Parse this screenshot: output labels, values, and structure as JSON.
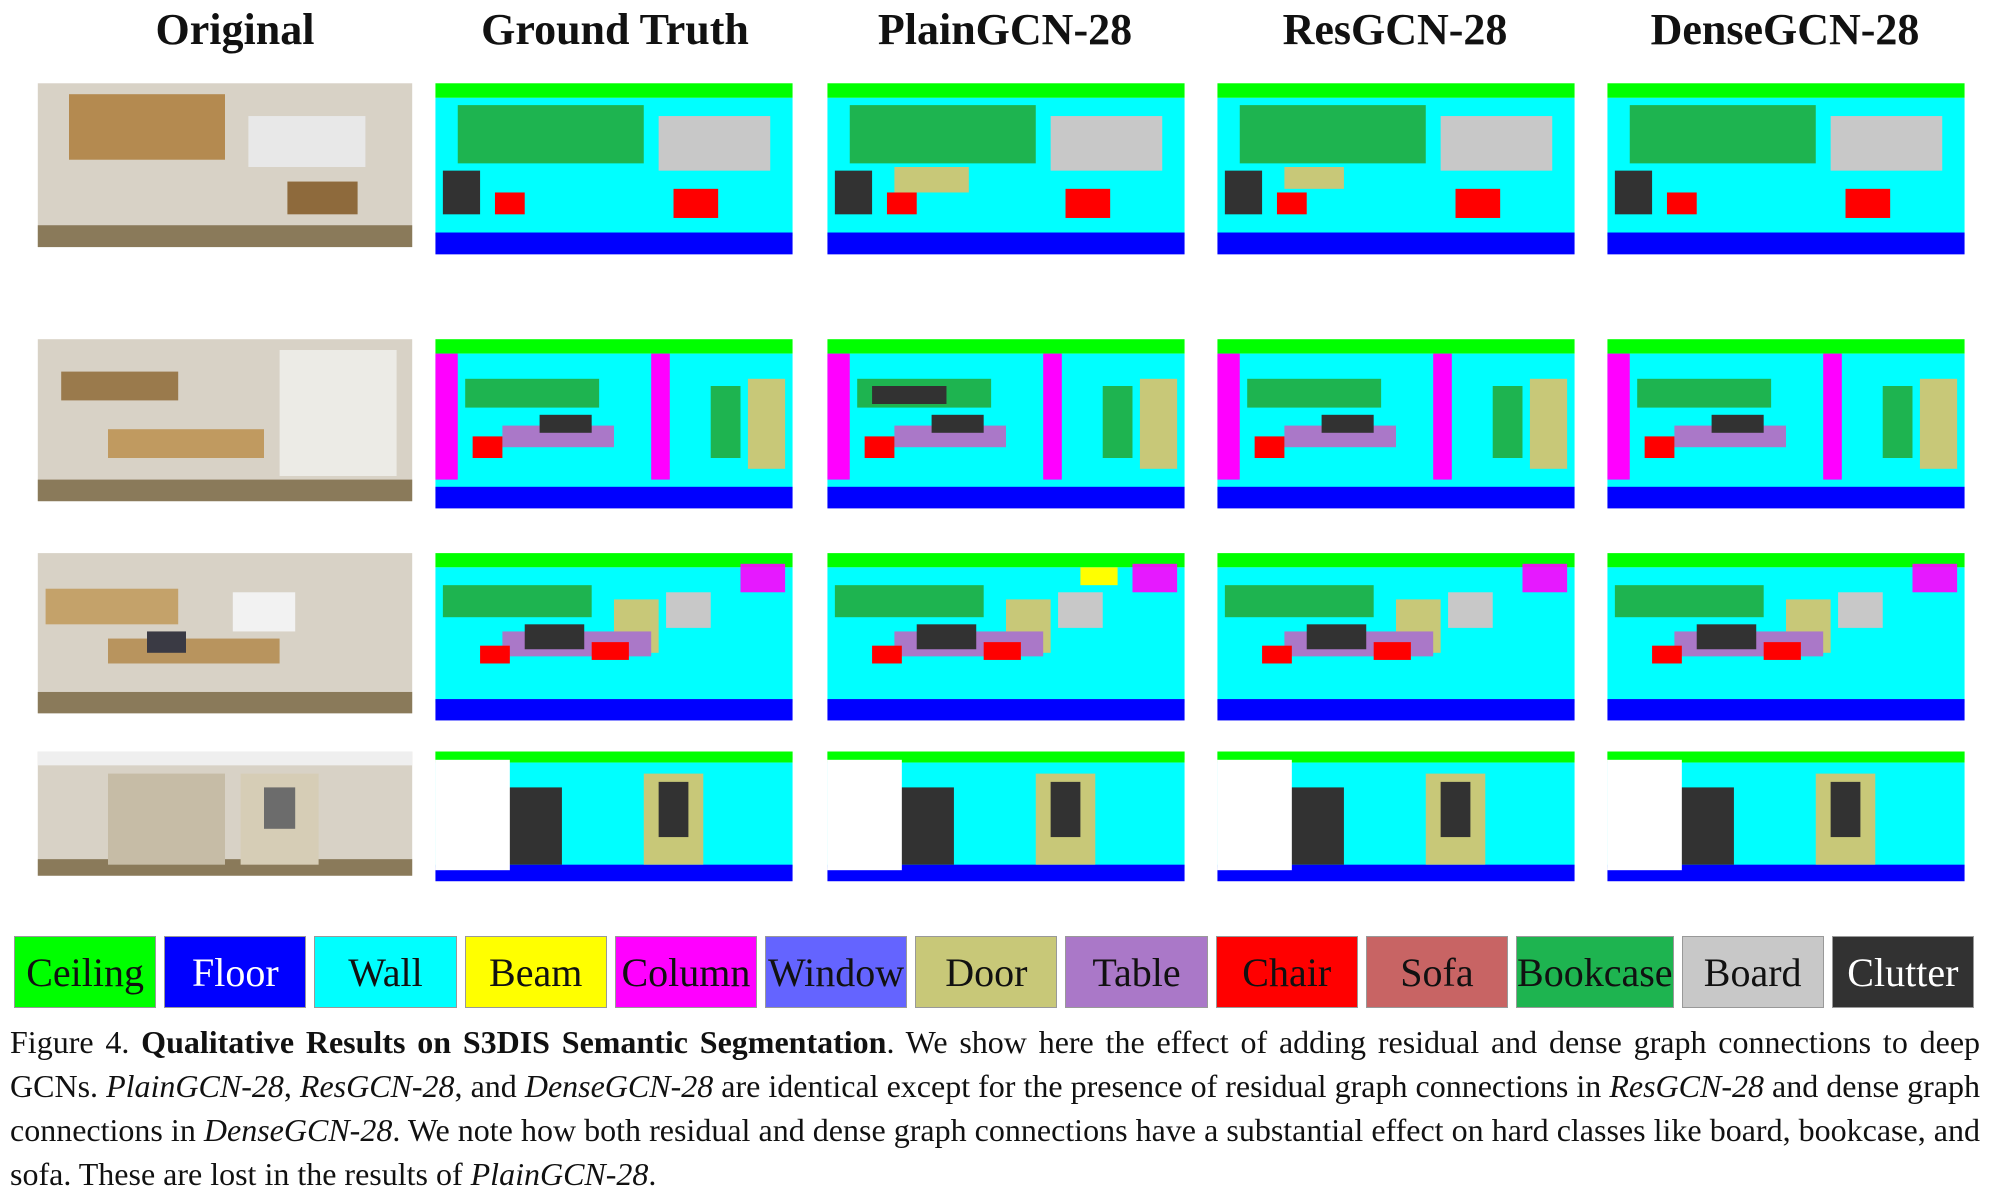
{
  "columns": [
    "Original",
    "Ground Truth",
    "PlainGCN-28",
    "ResGCN-28",
    "DenseGCN-28"
  ],
  "legend": [
    {
      "label": "Ceiling",
      "color": "#00ff00",
      "text": "dark"
    },
    {
      "label": "Floor",
      "color": "#0000ff",
      "text": "light"
    },
    {
      "label": "Wall",
      "color": "#00ffff",
      "text": "dark"
    },
    {
      "label": "Beam",
      "color": "#ffff00",
      "text": "dark"
    },
    {
      "label": "Column",
      "color": "#ff00ff",
      "text": "dark"
    },
    {
      "label": "Window",
      "color": "#6464ff",
      "text": "dark"
    },
    {
      "label": "Door",
      "color": "#c8c878",
      "text": "dark"
    },
    {
      "label": "Table",
      "color": "#aa78c8",
      "text": "dark"
    },
    {
      "label": "Chair",
      "color": "#ff0000",
      "text": "dark"
    },
    {
      "label": "Sofa",
      "color": "#c86464",
      "text": "dark"
    },
    {
      "label": "Bookcase",
      "color": "#1eb450",
      "text": "dark"
    },
    {
      "label": "Board",
      "color": "#c8c8c8",
      "text": "dark"
    },
    {
      "label": "Clutter",
      "color": "#323232",
      "text": "light"
    }
  ],
  "caption": {
    "fig_label": "Figure 4.",
    "fig_title": "Qualitative Results on S3DIS Semantic Segmentation",
    "p1": ". We show here the effect of adding residual and dense graph connections to deep GCNs. ",
    "m1": "PlainGCN-28",
    "p2": ", ",
    "m2": "ResGCN-28",
    "p3": ", and ",
    "m3": "DenseGCN-28",
    "p4": " are identical except for the presence of residual graph connections in ",
    "m4": "ResGCN-28",
    "p5": " and dense graph connections in ",
    "m5": "DenseGCN-28",
    "p6": ". We note how both residual and dense graph connections have a substantial effect on hard classes like board, bookcase, and sofa. These are lost in the results of ",
    "m6": "PlainGCN-28",
    "p7": "."
  }
}
